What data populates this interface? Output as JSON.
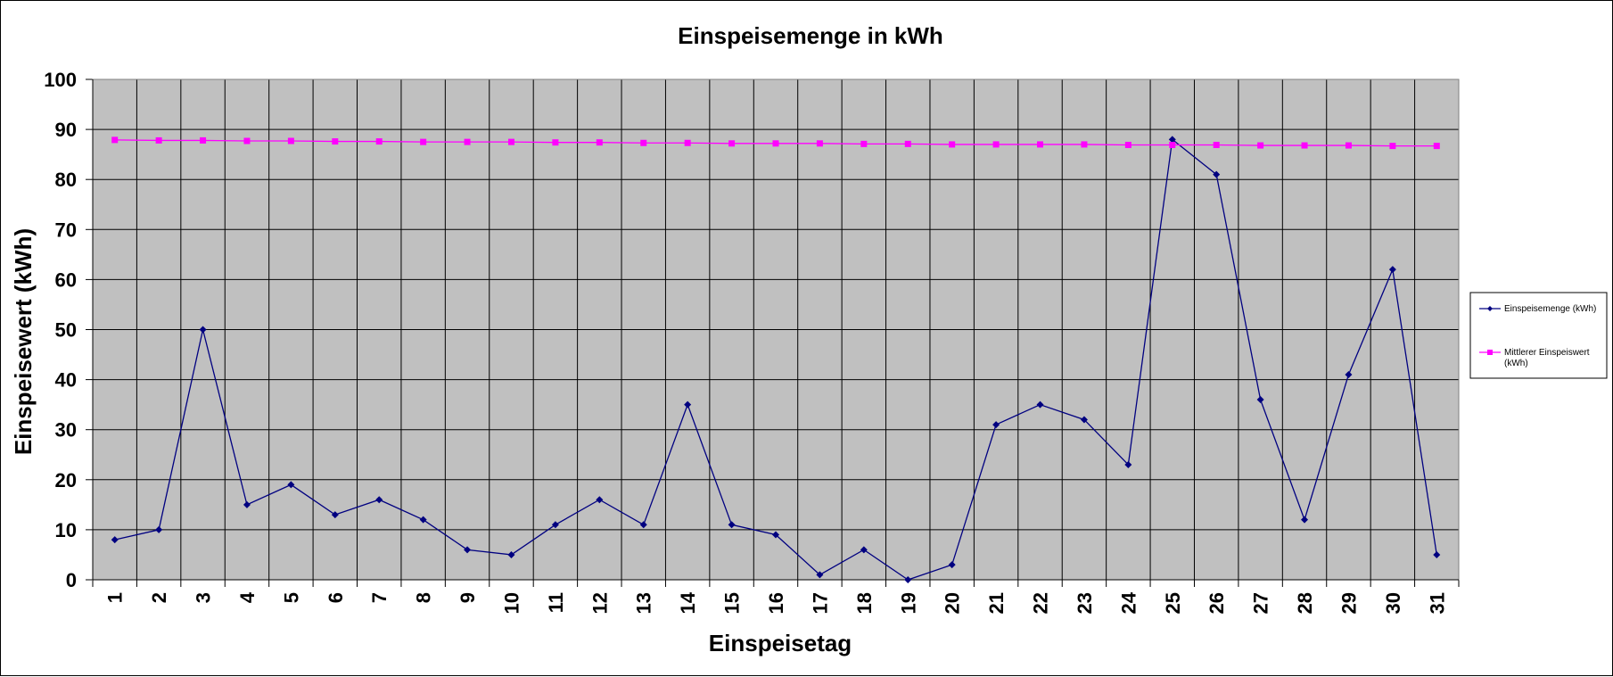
{
  "chart_data": {
    "type": "line",
    "title": "Einspeisemenge in kWh",
    "xlabel": "Einspeisetag",
    "ylabel": "Einspeisewert  (kWh)",
    "ylim": [
      0,
      100
    ],
    "yticks": [
      "0",
      "10",
      "20",
      "30",
      "40",
      "50",
      "60",
      "70",
      "80",
      "90",
      "100"
    ],
    "categories": [
      "1",
      "2",
      "3",
      "4",
      "5",
      "6",
      "7",
      "8",
      "9",
      "10",
      "11",
      "12",
      "13",
      "14",
      "15",
      "16",
      "17",
      "18",
      "19",
      "20",
      "21",
      "22",
      "23",
      "24",
      "25",
      "26",
      "27",
      "28",
      "29",
      "30",
      "31"
    ],
    "grid": true,
    "plot_background": "#C0C0C0",
    "legend_position": "right",
    "series": [
      {
        "name": "Einspeisemenge (kWh)",
        "color": "#000080",
        "marker": "diamond",
        "values": [
          8,
          10,
          50,
          15,
          19,
          13,
          16,
          12,
          6,
          5,
          11,
          16,
          11,
          35,
          11,
          9,
          1,
          6,
          0,
          3,
          31,
          35,
          32,
          23,
          88,
          81,
          36,
          12,
          41,
          62,
          5
        ]
      },
      {
        "name": "Mittlerer Einspeiswert (kWh)",
        "legend_lines": [
          "Mittlerer Einspeiswert",
          "(kWh)"
        ],
        "color": "#FF00FF",
        "marker": "square",
        "values": [
          87.9,
          87.8,
          87.8,
          87.7,
          87.7,
          87.6,
          87.6,
          87.5,
          87.5,
          87.5,
          87.4,
          87.4,
          87.3,
          87.3,
          87.2,
          87.2,
          87.2,
          87.1,
          87.1,
          87.0,
          87.0,
          87.0,
          87.0,
          86.9,
          86.9,
          86.9,
          86.8,
          86.8,
          86.8,
          86.7,
          86.7
        ]
      }
    ]
  }
}
